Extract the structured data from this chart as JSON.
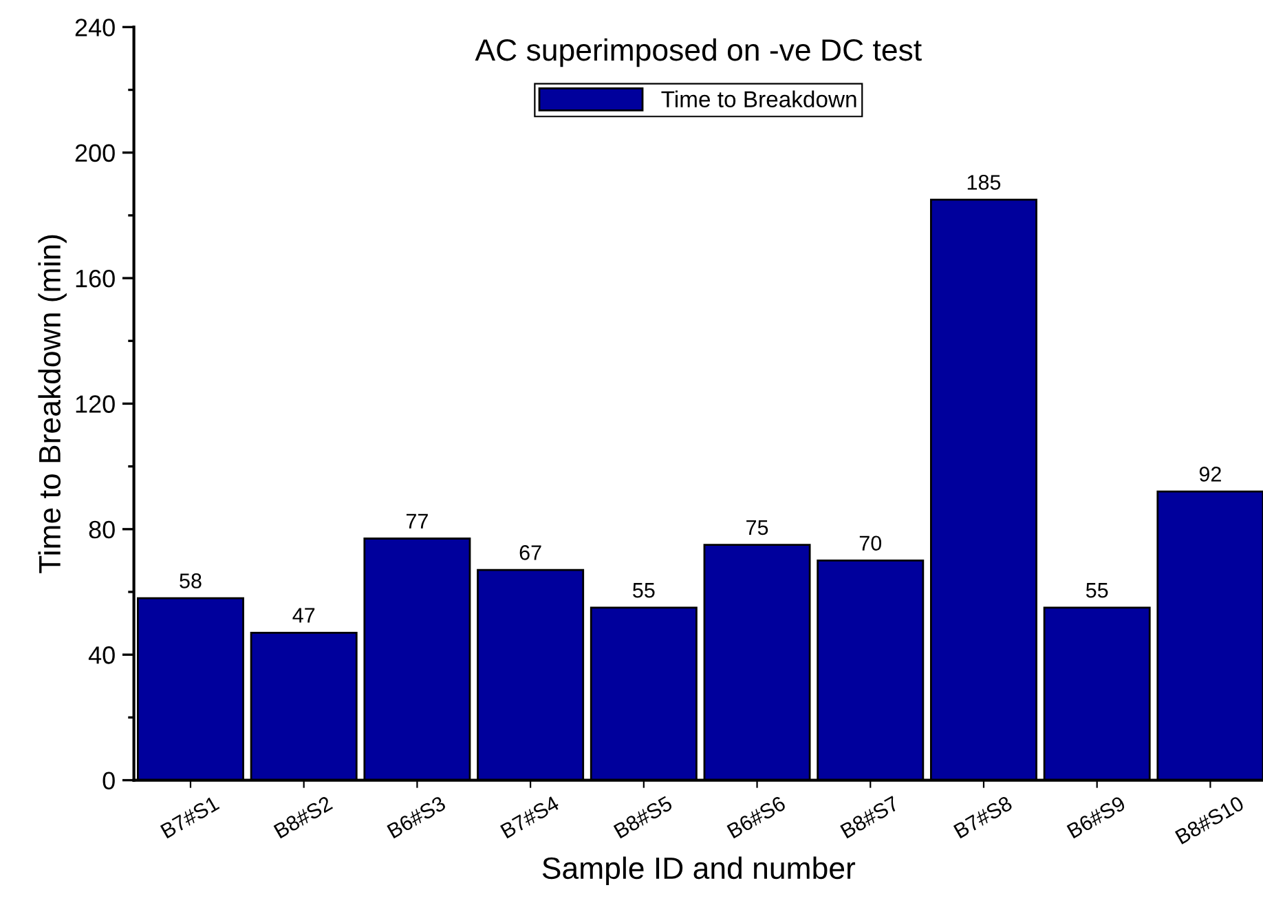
{
  "chart_data": {
    "type": "bar",
    "title": "AC superimposed on -ve DC test",
    "xlabel": "Sample ID and number",
    "ylabel": "Time to Breakdown (min)",
    "categories": [
      "B7#S1",
      "B8#S2",
      "B6#S3",
      "B7#S4",
      "B8#S5",
      "B6#S6",
      "B8#S7",
      "B7#S8",
      "B6#S9",
      "B8#S10"
    ],
    "series": [
      {
        "name": "Time to Breakdown",
        "color": "#00009c",
        "values": [
          58,
          47,
          77,
          67,
          55,
          75,
          70,
          185,
          55,
          92
        ]
      }
    ],
    "ylim": [
      0,
      240
    ],
    "yticks": [
      0,
      40,
      80,
      120,
      160,
      200,
      240
    ],
    "data_labels": true,
    "legend": "top",
    "grid": false
  }
}
